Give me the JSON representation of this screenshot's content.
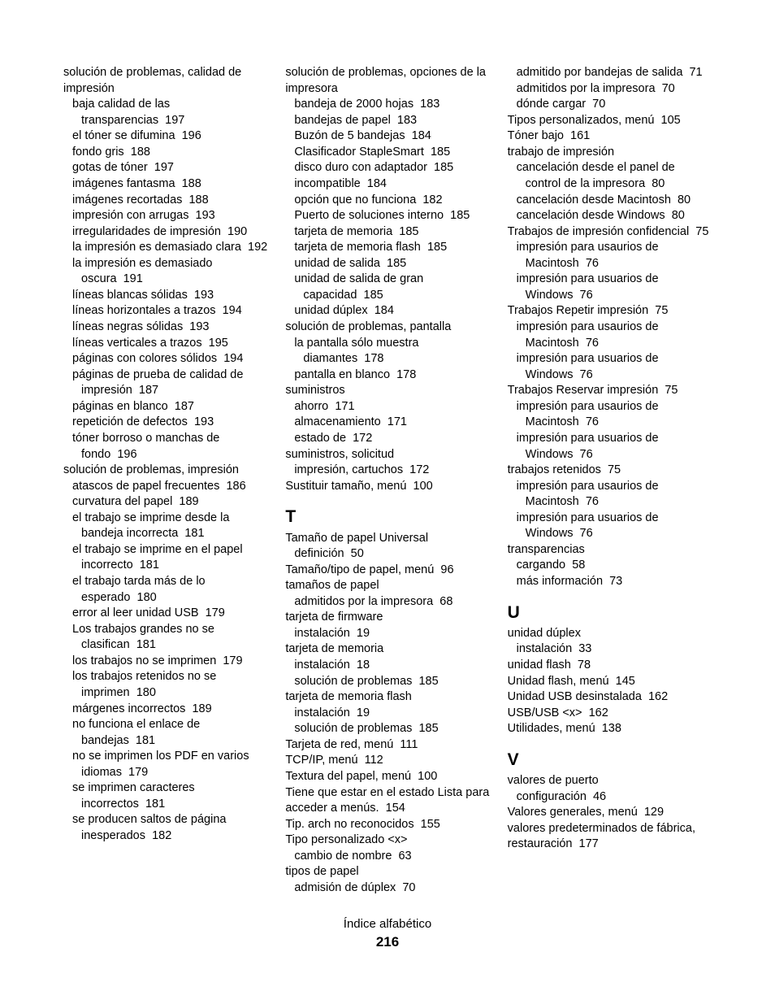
{
  "footer": {
    "title": "Índice alfabético",
    "page": "216"
  },
  "columns": [
    {
      "entries": [
        {
          "level": 0,
          "text": "solución de problemas, calidad de impresión"
        },
        {
          "level": 1,
          "text": "baja calidad de las transparencias",
          "page": "197"
        },
        {
          "level": 1,
          "text": "el tóner se difumina",
          "page": "196"
        },
        {
          "level": 1,
          "text": "fondo gris",
          "page": "188"
        },
        {
          "level": 1,
          "text": "gotas de tóner",
          "page": "197"
        },
        {
          "level": 1,
          "text": "imágenes fantasma",
          "page": "188"
        },
        {
          "level": 1,
          "text": "imágenes recortadas",
          "page": "188"
        },
        {
          "level": 1,
          "text": "impresión con arrugas",
          "page": "193"
        },
        {
          "level": 1,
          "text": "irregularidades de impresión",
          "page": "190"
        },
        {
          "level": 1,
          "text": "la impresión es demasiado clara",
          "page": "192"
        },
        {
          "level": 1,
          "text": "la impresión es demasiado oscura",
          "page": "191"
        },
        {
          "level": 1,
          "text": "líneas blancas sólidas",
          "page": "193"
        },
        {
          "level": 1,
          "text": "líneas horizontales a trazos",
          "page": "194"
        },
        {
          "level": 1,
          "text": "líneas negras sólidas",
          "page": "193"
        },
        {
          "level": 1,
          "text": "líneas verticales a trazos",
          "page": "195"
        },
        {
          "level": 1,
          "text": "páginas con colores sólidos",
          "page": "194"
        },
        {
          "level": 1,
          "text": "páginas de prueba de calidad de impresión",
          "page": "187"
        },
        {
          "level": 1,
          "text": "páginas en blanco",
          "page": "187"
        },
        {
          "level": 1,
          "text": "repetición de defectos",
          "page": "193"
        },
        {
          "level": 1,
          "text": "tóner borroso o manchas de fondo",
          "page": "196"
        },
        {
          "level": 0,
          "text": "solución de problemas, impresión"
        },
        {
          "level": 1,
          "text": "atascos de papel frecuentes",
          "page": "186"
        },
        {
          "level": 1,
          "text": "curvatura del papel",
          "page": "189"
        },
        {
          "level": 1,
          "text": "el trabajo se imprime desde la bandeja incorrecta",
          "page": "181"
        },
        {
          "level": 1,
          "text": "el trabajo se imprime en el papel incorrecto",
          "page": "181"
        },
        {
          "level": 1,
          "text": "el trabajo tarda más de lo esperado",
          "page": "180"
        },
        {
          "level": 1,
          "text": "error al leer unidad USB",
          "page": "179"
        },
        {
          "level": 1,
          "text": "Los trabajos grandes no se clasifican",
          "page": "181"
        },
        {
          "level": 1,
          "text": "los trabajos no se imprimen",
          "page": "179"
        },
        {
          "level": 1,
          "text": "los trabajos retenidos no se imprimen",
          "page": "180"
        },
        {
          "level": 1,
          "text": "márgenes incorrectos",
          "page": "189"
        },
        {
          "level": 1,
          "text": "no funciona el enlace de bandejas",
          "page": "181"
        },
        {
          "level": 1,
          "text": "no se imprimen los PDF en varios idiomas",
          "page": "179"
        },
        {
          "level": 1,
          "text": "se imprimen caracteres incorrectos",
          "page": "181"
        },
        {
          "level": 1,
          "text": "se producen saltos de página inesperados",
          "page": "182"
        }
      ]
    },
    {
      "entries": [
        {
          "level": 0,
          "text": "solución de problemas, opciones de la impresora"
        },
        {
          "level": 1,
          "text": "bandeja de 2000 hojas",
          "page": "183"
        },
        {
          "level": 1,
          "text": "bandejas de papel",
          "page": "183"
        },
        {
          "level": 1,
          "text": "Buzón de 5 bandejas",
          "page": "184"
        },
        {
          "level": 1,
          "text": "Clasificador StapleSmart",
          "page": "185"
        },
        {
          "level": 1,
          "text": "disco duro con adaptador",
          "page": "185"
        },
        {
          "level": 1,
          "text": "incompatible",
          "page": "184"
        },
        {
          "level": 1,
          "text": "opción que no funciona",
          "page": "182"
        },
        {
          "level": 1,
          "text": "Puerto de soluciones interno",
          "page": "185"
        },
        {
          "level": 1,
          "text": "tarjeta de memoria",
          "page": "185"
        },
        {
          "level": 1,
          "text": "tarjeta de memoria flash",
          "page": "185"
        },
        {
          "level": 1,
          "text": "unidad de salida",
          "page": "185"
        },
        {
          "level": 1,
          "text": "unidad de salida de gran capacidad",
          "page": "185"
        },
        {
          "level": 1,
          "text": "unidad dúplex",
          "page": "184"
        },
        {
          "level": 0,
          "text": "solución de problemas, pantalla"
        },
        {
          "level": 1,
          "text": "la pantalla sólo muestra diamantes",
          "page": "178"
        },
        {
          "level": 1,
          "text": "pantalla en blanco",
          "page": "178"
        },
        {
          "level": 0,
          "text": "suministros"
        },
        {
          "level": 1,
          "text": "ahorro",
          "page": "171"
        },
        {
          "level": 1,
          "text": "almacenamiento",
          "page": "171"
        },
        {
          "level": 1,
          "text": "estado de",
          "page": "172"
        },
        {
          "level": 0,
          "text": "suministros, solicitud"
        },
        {
          "level": 1,
          "text": "impresión, cartuchos",
          "page": "172"
        },
        {
          "level": 0,
          "text": "Sustituir tamaño, menú",
          "page": "100"
        },
        {
          "heading": "T"
        },
        {
          "level": 0,
          "text": "Tamaño de papel Universal"
        },
        {
          "level": 1,
          "text": "definición",
          "page": "50"
        },
        {
          "level": 0,
          "text": "Tamaño/tipo de papel, menú",
          "page": "96"
        },
        {
          "level": 0,
          "text": "tamaños de papel"
        },
        {
          "level": 1,
          "text": "admitidos por la impresora",
          "page": "68"
        },
        {
          "level": 0,
          "text": "tarjeta de firmware"
        },
        {
          "level": 1,
          "text": "instalación",
          "page": "19"
        },
        {
          "level": 0,
          "text": "tarjeta de memoria"
        },
        {
          "level": 1,
          "text": "instalación",
          "page": "18"
        },
        {
          "level": 1,
          "text": "solución de problemas",
          "page": "185"
        },
        {
          "level": 0,
          "text": "tarjeta de memoria flash"
        },
        {
          "level": 1,
          "text": "instalación",
          "page": "19"
        },
        {
          "level": 1,
          "text": "solución de problemas",
          "page": "185"
        },
        {
          "level": 0,
          "text": "Tarjeta de red, menú",
          "page": "111"
        },
        {
          "level": 0,
          "text": "TCP/IP, menú",
          "page": "112"
        },
        {
          "level": 0,
          "text": "Textura del papel, menú",
          "page": "100"
        },
        {
          "level": 0,
          "text": "Tiene que estar en el estado Lista para acceder a menús.",
          "page": "154"
        },
        {
          "level": 0,
          "text": "Tip. arch no reconocidos",
          "page": "155"
        },
        {
          "level": 0,
          "text": "Tipo personalizado <x>"
        },
        {
          "level": 1,
          "text": "cambio de nombre",
          "page": "63"
        },
        {
          "level": 0,
          "text": "tipos de papel"
        },
        {
          "level": 1,
          "text": "admisión de dúplex",
          "page": "70"
        }
      ]
    },
    {
      "entries": [
        {
          "level": 1,
          "text": "admitido por bandejas de salida",
          "page": "71"
        },
        {
          "level": 1,
          "text": "admitidos por la impresora",
          "page": "70"
        },
        {
          "level": 1,
          "text": "dónde cargar",
          "page": "70"
        },
        {
          "level": 0,
          "text": "Tipos personalizados, menú",
          "page": "105"
        },
        {
          "level": 0,
          "text": "Tóner bajo",
          "page": "161"
        },
        {
          "level": 0,
          "text": "trabajo de impresión"
        },
        {
          "level": 1,
          "text": "cancelación desde el panel de control de la impresora",
          "page": "80"
        },
        {
          "level": 1,
          "text": "cancelación desde Macintosh",
          "page": "80"
        },
        {
          "level": 1,
          "text": "cancelación desde Windows",
          "page": "80"
        },
        {
          "level": 0,
          "text": "Trabajos de impresión confidencial",
          "page": "75"
        },
        {
          "level": 1,
          "text": "impresión para usaurios de Macintosh",
          "page": "76"
        },
        {
          "level": 1,
          "text": "impresión para usuarios de Windows",
          "page": "76"
        },
        {
          "level": 0,
          "text": "Trabajos Repetir impresión",
          "page": "75"
        },
        {
          "level": 1,
          "text": "impresión para usaurios de Macintosh",
          "page": "76"
        },
        {
          "level": 1,
          "text": "impresión para usuarios de Windows",
          "page": "76"
        },
        {
          "level": 0,
          "text": "Trabajos Reservar impresión",
          "page": "75"
        },
        {
          "level": 1,
          "text": "impresión para usaurios de Macintosh",
          "page": "76"
        },
        {
          "level": 1,
          "text": "impresión para usuarios de Windows",
          "page": "76"
        },
        {
          "level": 0,
          "text": "trabajos retenidos",
          "page": "75"
        },
        {
          "level": 1,
          "text": "impresión para usaurios de Macintosh",
          "page": "76"
        },
        {
          "level": 1,
          "text": "impresión para usuarios de Windows",
          "page": "76"
        },
        {
          "level": 0,
          "text": "transparencias"
        },
        {
          "level": 1,
          "text": "cargando",
          "page": "58"
        },
        {
          "level": 1,
          "text": "más información",
          "page": "73"
        },
        {
          "heading": "U"
        },
        {
          "level": 0,
          "text": "unidad dúplex"
        },
        {
          "level": 1,
          "text": "instalación",
          "page": "33"
        },
        {
          "level": 0,
          "text": "unidad flash",
          "page": "78"
        },
        {
          "level": 0,
          "text": "Unidad flash, menú",
          "page": "145"
        },
        {
          "level": 0,
          "text": "Unidad USB desinstalada",
          "page": "162"
        },
        {
          "level": 0,
          "text": "USB/USB <x>",
          "page": "162"
        },
        {
          "level": 0,
          "text": "Utilidades, menú",
          "page": "138"
        },
        {
          "heading": "V"
        },
        {
          "level": 0,
          "text": "valores de puerto"
        },
        {
          "level": 1,
          "text": "configuración",
          "page": "46"
        },
        {
          "level": 0,
          "text": "Valores generales, menú",
          "page": "129"
        },
        {
          "level": 0,
          "text": "valores predeterminados de fábrica, restauración",
          "page": "177"
        }
      ]
    }
  ]
}
